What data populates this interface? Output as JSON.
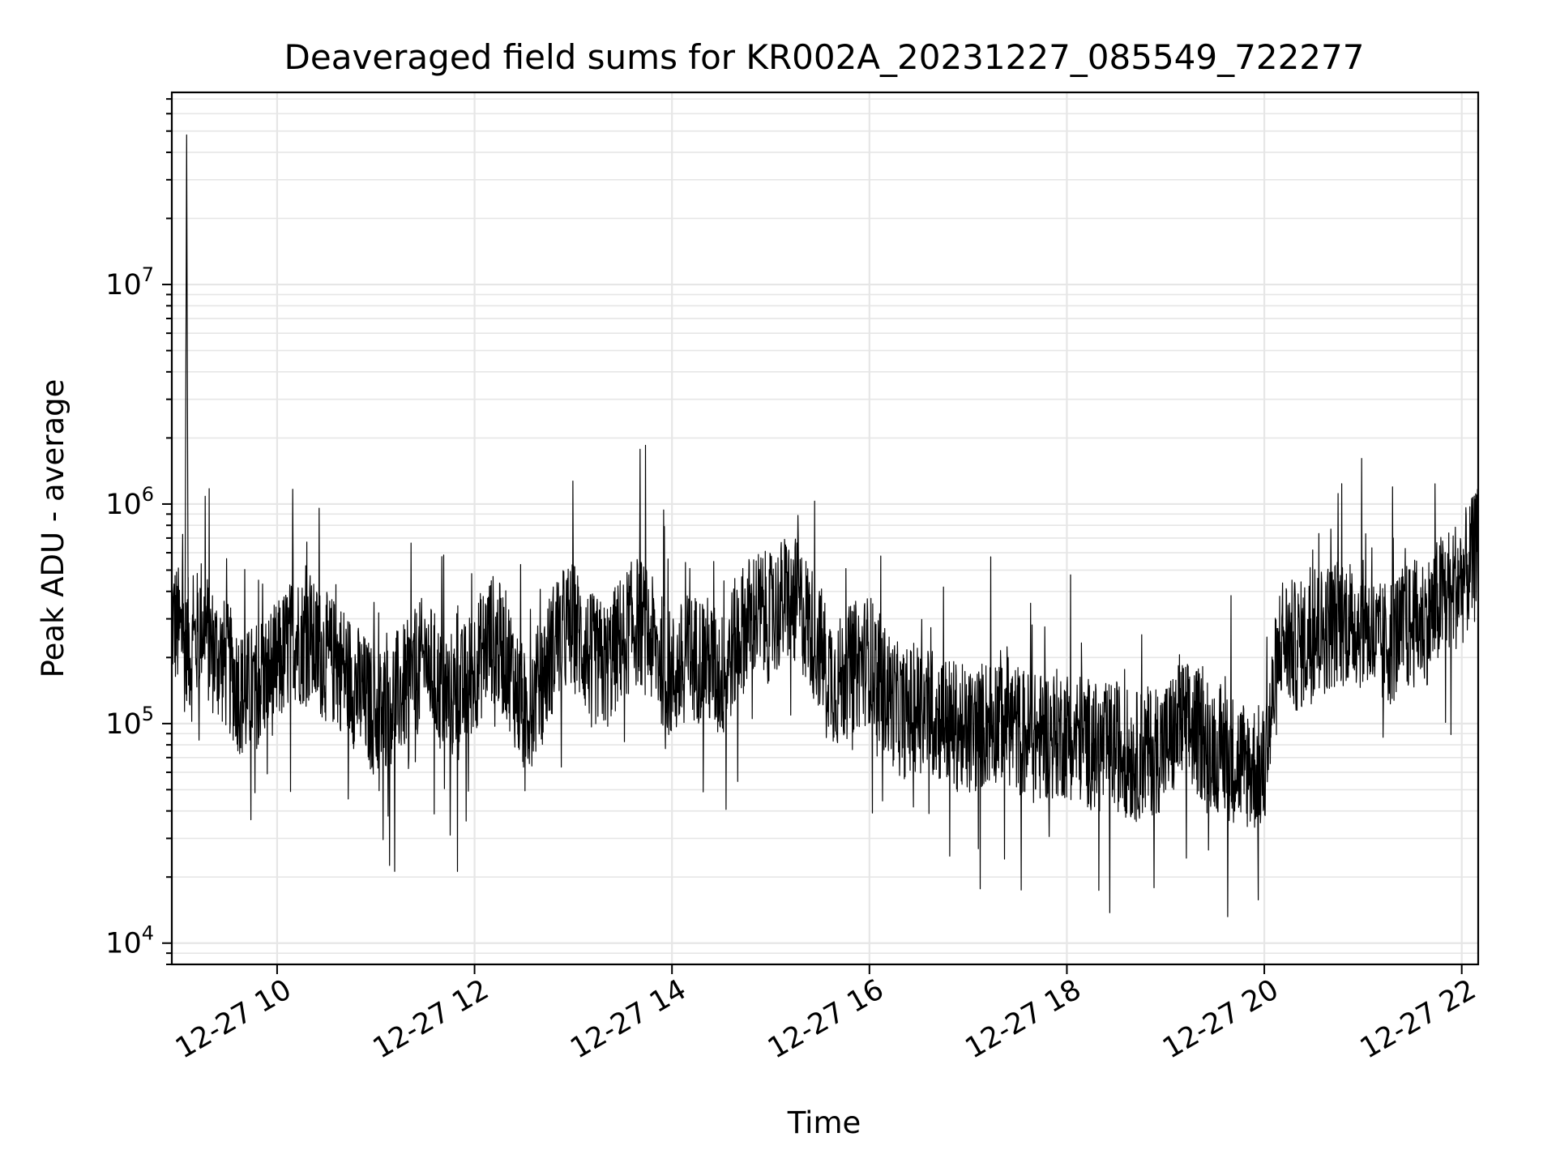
{
  "chart_data": {
    "type": "line",
    "title": "Deaveraged field sums for KR002A_20231227_085549_722277",
    "xlabel": "Time",
    "ylabel": "Peak ADU - average",
    "x_scale": "time",
    "y_scale": "log",
    "xlim": [
      "2023-12-27 08:56",
      "2023-12-27 22:10"
    ],
    "ylim": [
      8000,
      75000000
    ],
    "x_ticks": [
      {
        "value": "2023-12-27 10:00",
        "label": "12-27 10"
      },
      {
        "value": "2023-12-27 12:00",
        "label": "12-27 12"
      },
      {
        "value": "2023-12-27 14:00",
        "label": "12-27 14"
      },
      {
        "value": "2023-12-27 16:00",
        "label": "12-27 16"
      },
      {
        "value": "2023-12-27 18:00",
        "label": "12-27 18"
      },
      {
        "value": "2023-12-27 20:00",
        "label": "12-27 20"
      },
      {
        "value": "2023-12-27 22:00",
        "label": "12-27 22"
      }
    ],
    "y_ticks": [
      {
        "value": 10000,
        "base": "10",
        "exp": "4"
      },
      {
        "value": 100000,
        "base": "10",
        "exp": "5"
      },
      {
        "value": 1000000,
        "base": "10",
        "exp": "6"
      },
      {
        "value": 10000000,
        "base": "10",
        "exp": "7"
      }
    ],
    "grid": true,
    "line_color": "#000000",
    "grid_color": "#e6e6e6",
    "series": [
      {
        "x": [
          "2023-12-27 08:56",
          "2023-12-27 09:02",
          "2023-12-27 09:05",
          "2023-12-27 09:08",
          "2023-12-27 09:14",
          "2023-12-27 09:20",
          "2023-12-27 09:30",
          "2023-12-27 09:40",
          "2023-12-27 09:50",
          "2023-12-27 10:00",
          "2023-12-27 10:10",
          "2023-12-27 10:20",
          "2023-12-27 10:30",
          "2023-12-27 10:40",
          "2023-12-27 10:50",
          "2023-12-27 11:00",
          "2023-12-27 11:10",
          "2023-12-27 11:20",
          "2023-12-27 11:30",
          "2023-12-27 11:40",
          "2023-12-27 11:50",
          "2023-12-27 12:00",
          "2023-12-27 12:10",
          "2023-12-27 12:20",
          "2023-12-27 12:30",
          "2023-12-27 12:40",
          "2023-12-27 12:50",
          "2023-12-27 13:00",
          "2023-12-27 13:10",
          "2023-12-27 13:20",
          "2023-12-27 13:30",
          "2023-12-27 13:40",
          "2023-12-27 13:50",
          "2023-12-27 14:00",
          "2023-12-27 14:10",
          "2023-12-27 14:20",
          "2023-12-27 14:30",
          "2023-12-27 14:40",
          "2023-12-27 14:50",
          "2023-12-27 15:00",
          "2023-12-27 15:10",
          "2023-12-27 15:20",
          "2023-12-27 15:30",
          "2023-12-27 15:40",
          "2023-12-27 15:50",
          "2023-12-27 16:00",
          "2023-12-27 16:10",
          "2023-12-27 16:20",
          "2023-12-27 16:30",
          "2023-12-27 16:40",
          "2023-12-27 16:50",
          "2023-12-27 17:00",
          "2023-12-27 17:10",
          "2023-12-27 17:20",
          "2023-12-27 17:30",
          "2023-12-27 17:40",
          "2023-12-27 17:50",
          "2023-12-27 18:00",
          "2023-12-27 18:10",
          "2023-12-27 18:20",
          "2023-12-27 18:30",
          "2023-12-27 18:40",
          "2023-12-27 18:50",
          "2023-12-27 19:00",
          "2023-12-27 19:10",
          "2023-12-27 19:20",
          "2023-12-27 19:30",
          "2023-12-27 19:40",
          "2023-12-27 19:50",
          "2023-12-27 20:00",
          "2023-12-27 20:10",
          "2023-12-27 20:20",
          "2023-12-27 20:30",
          "2023-12-27 20:40",
          "2023-12-27 20:50",
          "2023-12-27 21:00",
          "2023-12-27 21:10",
          "2023-12-27 21:20",
          "2023-12-27 21:30",
          "2023-12-27 21:40",
          "2023-12-27 21:50",
          "2023-12-27 22:00",
          "2023-12-27 22:10"
        ],
        "y": [
          300000,
          250000,
          48000000,
          200000,
          300000,
          220000,
          180000,
          130000,
          160000,
          180000,
          250000,
          230000,
          200000,
          180000,
          140000,
          110000,
          130000,
          150000,
          200000,
          140000,
          130000,
          180000,
          250000,
          200000,
          110000,
          150000,
          250000,
          280000,
          200000,
          180000,
          250000,
          300000,
          220000,
          160000,
          200000,
          200000,
          160000,
          250000,
          320000,
          300000,
          380000,
          320000,
          220000,
          150000,
          180000,
          200000,
          140000,
          110000,
          120000,
          110000,
          100000,
          90000,
          100000,
          110000,
          95000,
          85000,
          90000,
          90000,
          85000,
          75000,
          80000,
          70000,
          75000,
          80000,
          100000,
          90000,
          80000,
          70000,
          65000,
          60000,
          250000,
          220000,
          250000,
          280000,
          300000,
          280000,
          220000,
          250000,
          280000,
          300000,
          400000,
          450000,
          600000
        ]
      }
    ],
    "noise": {
      "samples": 3600,
      "log10_spread": 0.3,
      "spike_fraction": 0.04,
      "spike_log10_extra": 0.6
    }
  }
}
